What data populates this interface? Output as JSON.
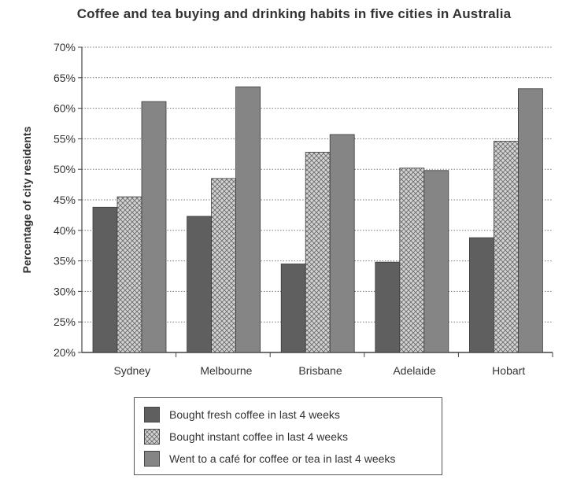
{
  "chart_data": {
    "type": "bar",
    "title": "Coffee and tea buying and drinking habits in five cities in Australia",
    "ylabel": "Percentage of city residents",
    "xlabel": "",
    "ylim": [
      20,
      70
    ],
    "y_ticks": [
      "20%",
      "25%",
      "30%",
      "35%",
      "40%",
      "45%",
      "50%",
      "55%",
      "60%",
      "65%",
      "70%"
    ],
    "grid": "horizontal dotted",
    "legend_position": "bottom",
    "categories": [
      "Sydney",
      "Melbourne",
      "Brisbane",
      "Adelaide",
      "Hobart"
    ],
    "series": [
      {
        "name": "Bought fresh coffee in last 4 weeks",
        "values": [
          43.8,
          42.3,
          34.5,
          34.8,
          38.8
        ],
        "color": "#5f5f5f",
        "pattern": "solid"
      },
      {
        "name": "Bought instant coffee in last 4 weeks",
        "values": [
          45.5,
          48.5,
          52.8,
          50.2,
          54.6
        ],
        "color": "#bdbdbd",
        "pattern": "crosshatch"
      },
      {
        "name": "Went to a café for coffee or tea in last 4 weeks",
        "values": [
          61.1,
          63.5,
          55.7,
          49.8,
          63.2
        ],
        "color": "#858585",
        "pattern": "solid"
      }
    ]
  }
}
